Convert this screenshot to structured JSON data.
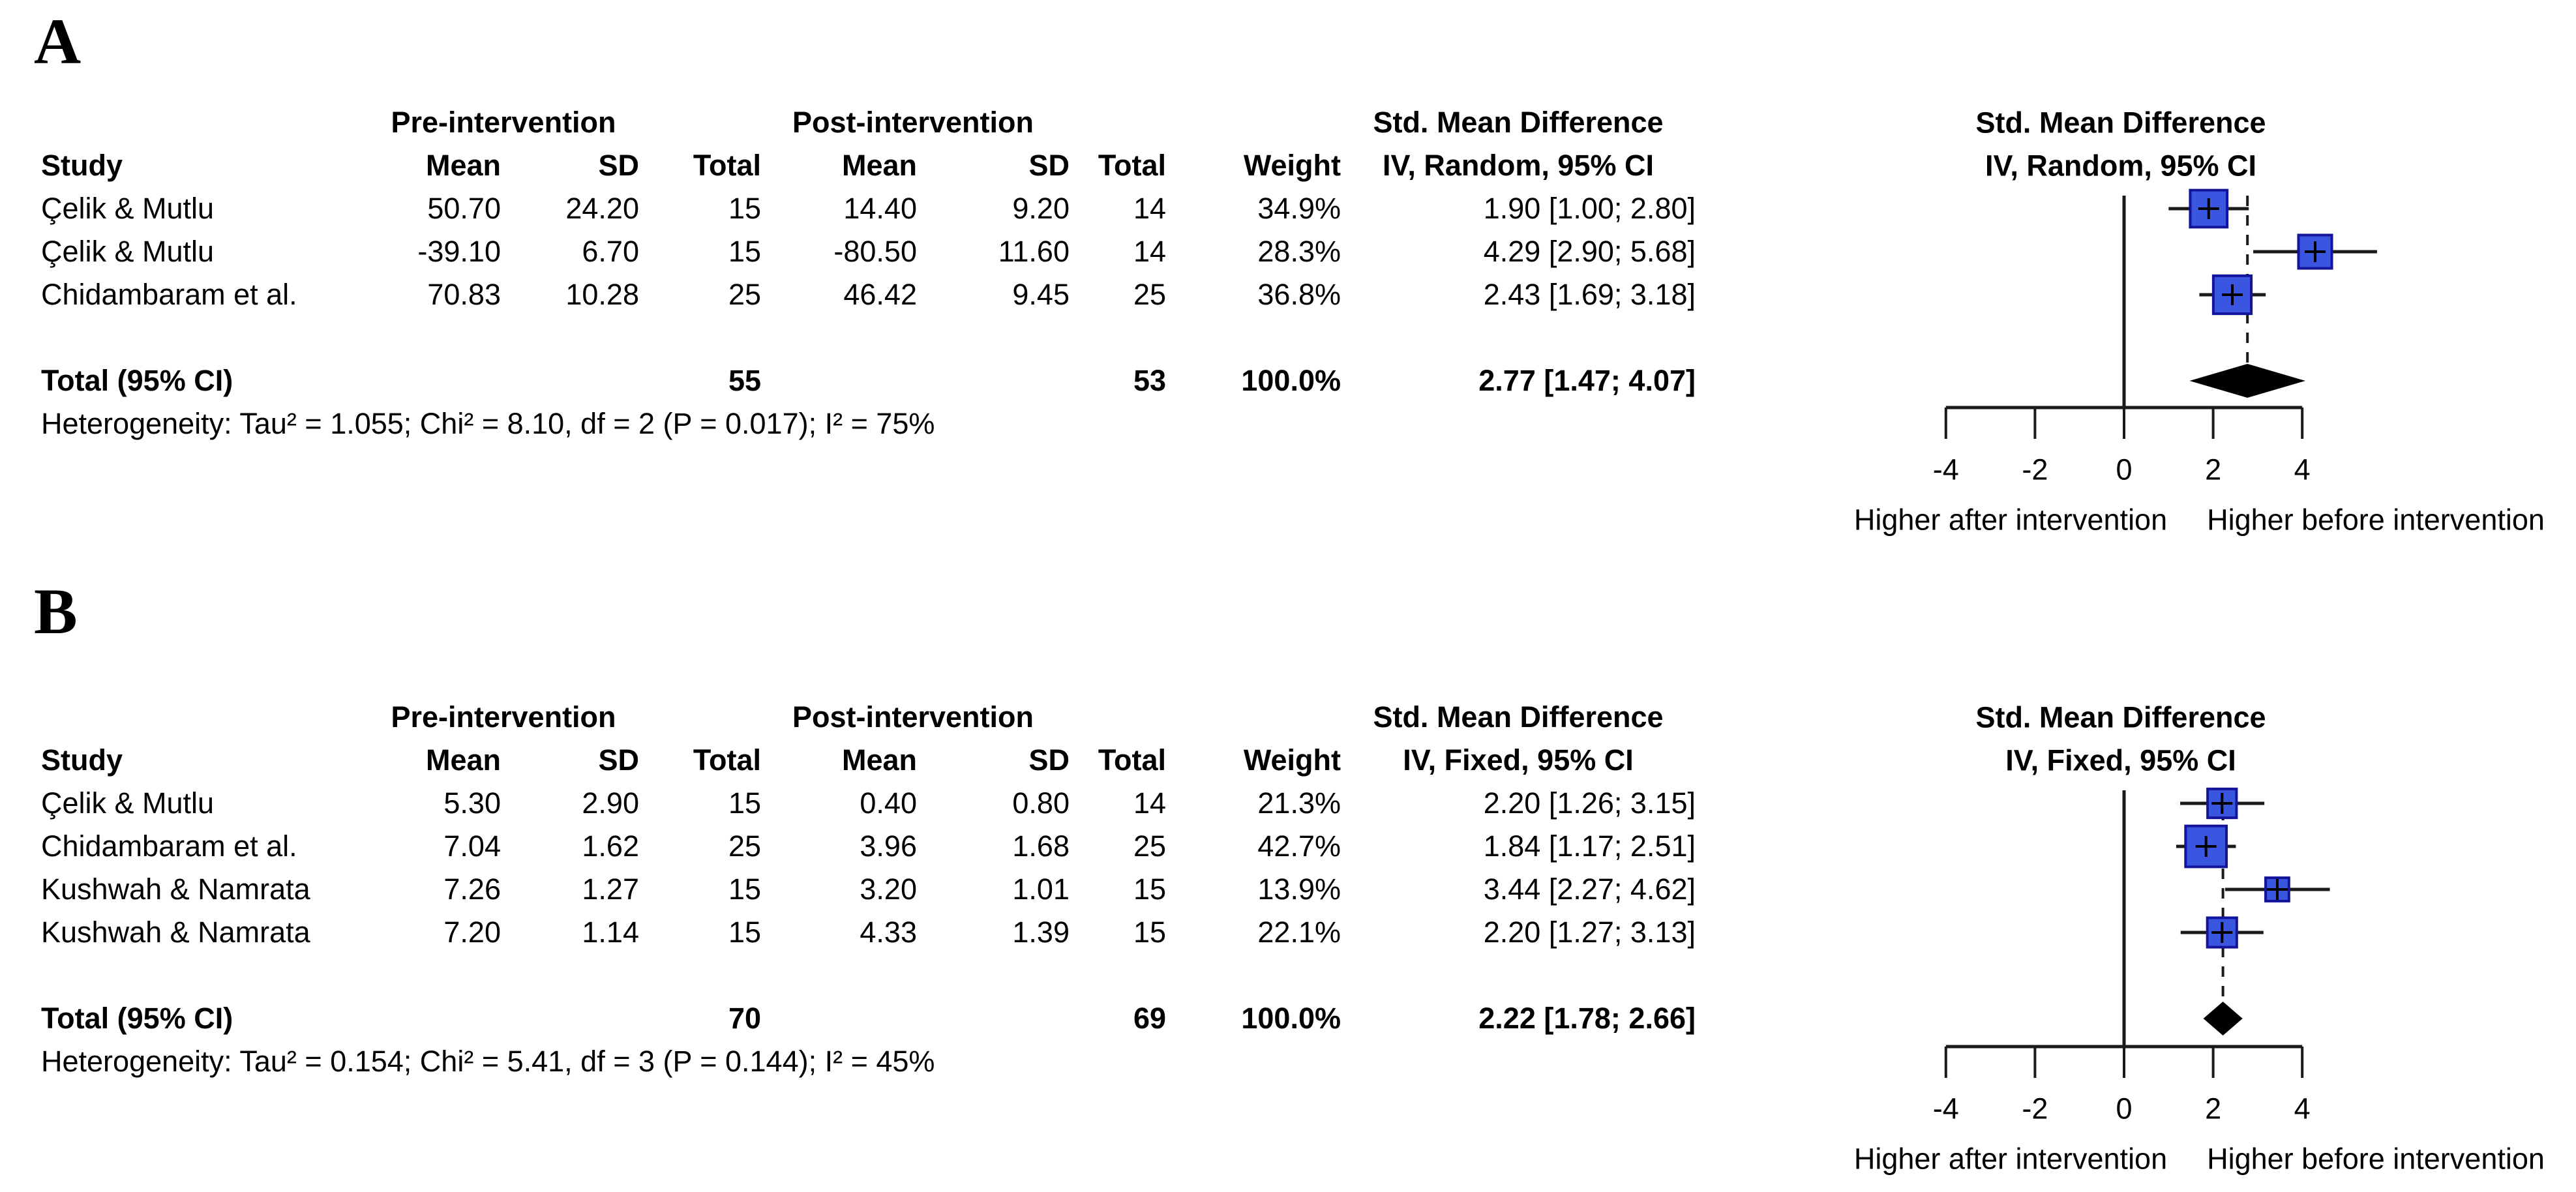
{
  "figure": {
    "panel_labels": [
      "A",
      "B"
    ]
  },
  "colors": {
    "background": "#ffffff",
    "text": "#000000",
    "square_fill": "#3a55e0",
    "square_stroke": "#14149a",
    "ci_line": "#1a1a1a",
    "diamond_fill": "#000000",
    "axis_line": "#1a1a1a"
  },
  "panels": [
    {
      "label": "A",
      "table": {
        "group_headers": [
          "Pre-intervention",
          "Post-intervention",
          "Std. Mean Difference"
        ],
        "col_headers": [
          "Study",
          "Mean",
          "SD",
          "Total",
          "Mean",
          "SD",
          "Total",
          "Weight",
          "IV, Random, 95% CI"
        ],
        "studies": [
          {
            "study": "Çelik & Mutlu",
            "pre_mean": "50.70",
            "pre_sd": "24.20",
            "pre_total": "15",
            "post_mean": "14.40",
            "post_sd": "9.20",
            "post_total": "14",
            "weight": "34.9%",
            "smd_text": "1.90 [1.00; 2.80]"
          },
          {
            "study": "Çelik & Mutlu",
            "pre_mean": "-39.10",
            "pre_sd": "6.70",
            "pre_total": "15",
            "post_mean": "-80.50",
            "post_sd": "11.60",
            "post_total": "14",
            "weight": "28.3%",
            "smd_text": "4.29 [2.90; 5.68]"
          },
          {
            "study": "Chidambaram et al.",
            "pre_mean": "70.83",
            "pre_sd": "10.28",
            "pre_total": "25",
            "post_mean": "46.42",
            "post_sd": "9.45",
            "post_total": "25",
            "weight": "36.8%",
            "smd_text": "2.43 [1.69; 3.18]"
          }
        ],
        "total_row": {
          "label": "Total (95% CI)",
          "pre_total": "55",
          "post_total": "53",
          "weight": "100.0%",
          "smd_text": "2.77 [1.47; 4.07]"
        },
        "heterogeneity": "Heterogeneity: Tau² = 1.055; Chi² = 8.10, df = 2 (P = 0.017); I² = 75%"
      }
    },
    {
      "label": "B",
      "table": {
        "group_headers": [
          "Pre-intervention",
          "Post-intervention",
          "Std. Mean Difference"
        ],
        "col_headers": [
          "Study",
          "Mean",
          "SD",
          "Total",
          "Mean",
          "SD",
          "Total",
          "Weight",
          "IV, Fixed, 95% CI"
        ],
        "studies": [
          {
            "study": "Çelik & Mutlu",
            "pre_mean": "5.30",
            "pre_sd": "2.90",
            "pre_total": "15",
            "post_mean": "0.40",
            "post_sd": "0.80",
            "post_total": "14",
            "weight": "21.3%",
            "smd_text": "2.20 [1.26; 3.15]"
          },
          {
            "study": "Chidambaram et al.",
            "pre_mean": "7.04",
            "pre_sd": "1.62",
            "pre_total": "25",
            "post_mean": "3.96",
            "post_sd": "1.68",
            "post_total": "25",
            "weight": "42.7%",
            "smd_text": "1.84 [1.17; 2.51]"
          },
          {
            "study": "Kushwah & Namrata",
            "pre_mean": "7.26",
            "pre_sd": "1.27",
            "pre_total": "15",
            "post_mean": "3.20",
            "post_sd": "1.01",
            "post_total": "15",
            "weight": "13.9%",
            "smd_text": "3.44 [2.27; 4.62]"
          },
          {
            "study": "Kushwah & Namrata",
            "pre_mean": "7.20",
            "pre_sd": "1.14",
            "pre_total": "15",
            "post_mean": "4.33",
            "post_sd": "1.39",
            "post_total": "15",
            "weight": "22.1%",
            "smd_text": "2.20 [1.27; 3.13]"
          }
        ],
        "total_row": {
          "label": "Total (95% CI)",
          "pre_total": "70",
          "post_total": "69",
          "weight": "100.0%",
          "smd_text": "2.22 [1.78; 2.66]"
        },
        "heterogeneity": "Heterogeneity: Tau² = 0.154; Chi² = 5.41, df = 3 (P = 0.144); I² = 45%"
      }
    }
  ],
  "chart_data": [
    {
      "type": "forest",
      "title": "Std. Mean Difference",
      "effect_label": [
        "Std. Mean Difference",
        "IV, Random, 95% CI"
      ],
      "xlim": [
        -4,
        4
      ],
      "x_ticks": [
        -4,
        -2,
        0,
        2,
        4
      ],
      "zero_line": 0,
      "overall_line": 2.77,
      "points": [
        {
          "study": "Çelik & Mutlu",
          "est": 1.9,
          "lo": 1.0,
          "hi": 2.8,
          "weight_pct": 34.9
        },
        {
          "study": "Çelik & Mutlu",
          "est": 4.29,
          "lo": 2.9,
          "hi": 5.68,
          "weight_pct": 28.3
        },
        {
          "study": "Chidambaram et al.",
          "est": 2.43,
          "lo": 1.69,
          "hi": 3.18,
          "weight_pct": 36.8
        }
      ],
      "diamond": {
        "est": 2.77,
        "lo": 1.47,
        "hi": 4.07
      },
      "x_axis_labels": {
        "left": "Higher after intervention",
        "right": "Higher before intervention"
      },
      "grid": false,
      "legend": false
    },
    {
      "type": "forest",
      "title": "Std. Mean Difference",
      "effect_label": [
        "Std. Mean Difference",
        "IV, Fixed, 95% CI"
      ],
      "xlim": [
        -4,
        4
      ],
      "x_ticks": [
        -4,
        -2,
        0,
        2,
        4
      ],
      "zero_line": 0,
      "overall_line": 2.22,
      "points": [
        {
          "study": "Çelik & Mutlu",
          "est": 2.2,
          "lo": 1.26,
          "hi": 3.15,
          "weight_pct": 21.3
        },
        {
          "study": "Chidambaram et al.",
          "est": 1.84,
          "lo": 1.17,
          "hi": 2.51,
          "weight_pct": 42.7
        },
        {
          "study": "Kushwah & Namrata",
          "est": 3.44,
          "lo": 2.27,
          "hi": 4.62,
          "weight_pct": 13.9
        },
        {
          "study": "Kushwah & Namrata",
          "est": 2.2,
          "lo": 1.27,
          "hi": 3.13,
          "weight_pct": 22.1
        }
      ],
      "diamond": {
        "est": 2.22,
        "lo": 1.78,
        "hi": 2.66
      },
      "x_axis_labels": {
        "left": "Higher after intervention",
        "right": "Higher before intervention"
      },
      "grid": false,
      "legend": false
    }
  ]
}
